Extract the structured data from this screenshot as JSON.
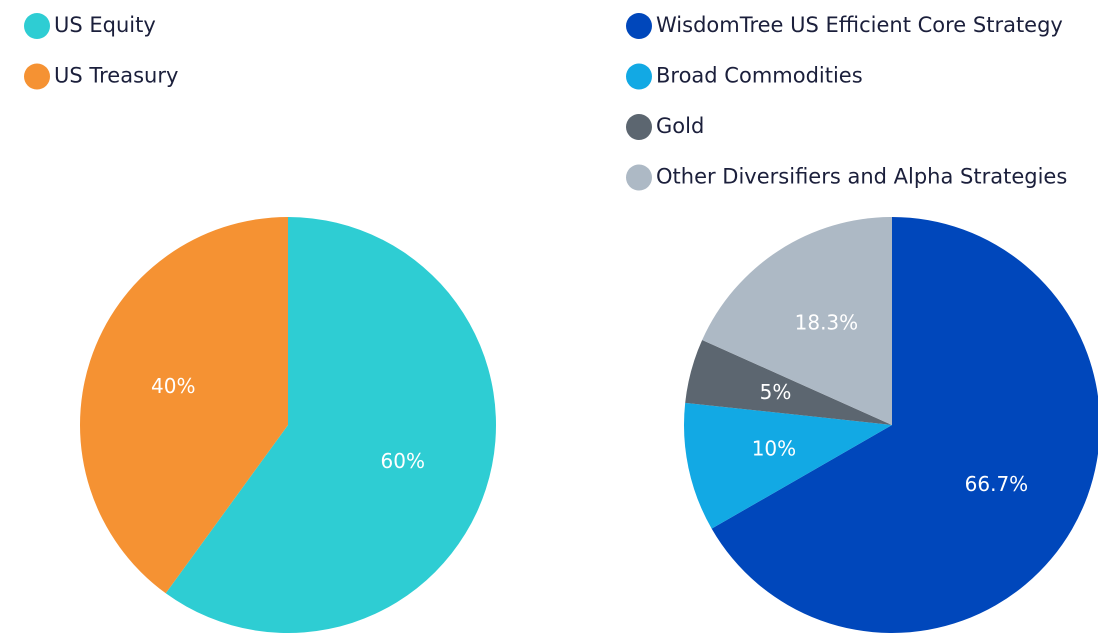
{
  "chart_data": [
    {
      "type": "pie",
      "categories": [
        "US Equity",
        "US Treasury"
      ],
      "values": [
        60,
        40
      ],
      "value_labels": [
        "60%",
        "40%"
      ],
      "colors": [
        "#2ecdd3",
        "#f59233"
      ]
    },
    {
      "type": "pie",
      "categories": [
        "WisdomTree US Efficient Core Strategy",
        "Broad Commodities",
        "Gold",
        "Other Diversifiers and Alpha Strategies"
      ],
      "values": [
        66.7,
        10,
        5,
        18.3
      ],
      "value_labels": [
        "66.7%",
        "10%",
        "5%",
        "18.3%"
      ],
      "colors": [
        "#0047bb",
        "#12a9e4",
        "#5c6670",
        "#adb9c5"
      ]
    }
  ]
}
